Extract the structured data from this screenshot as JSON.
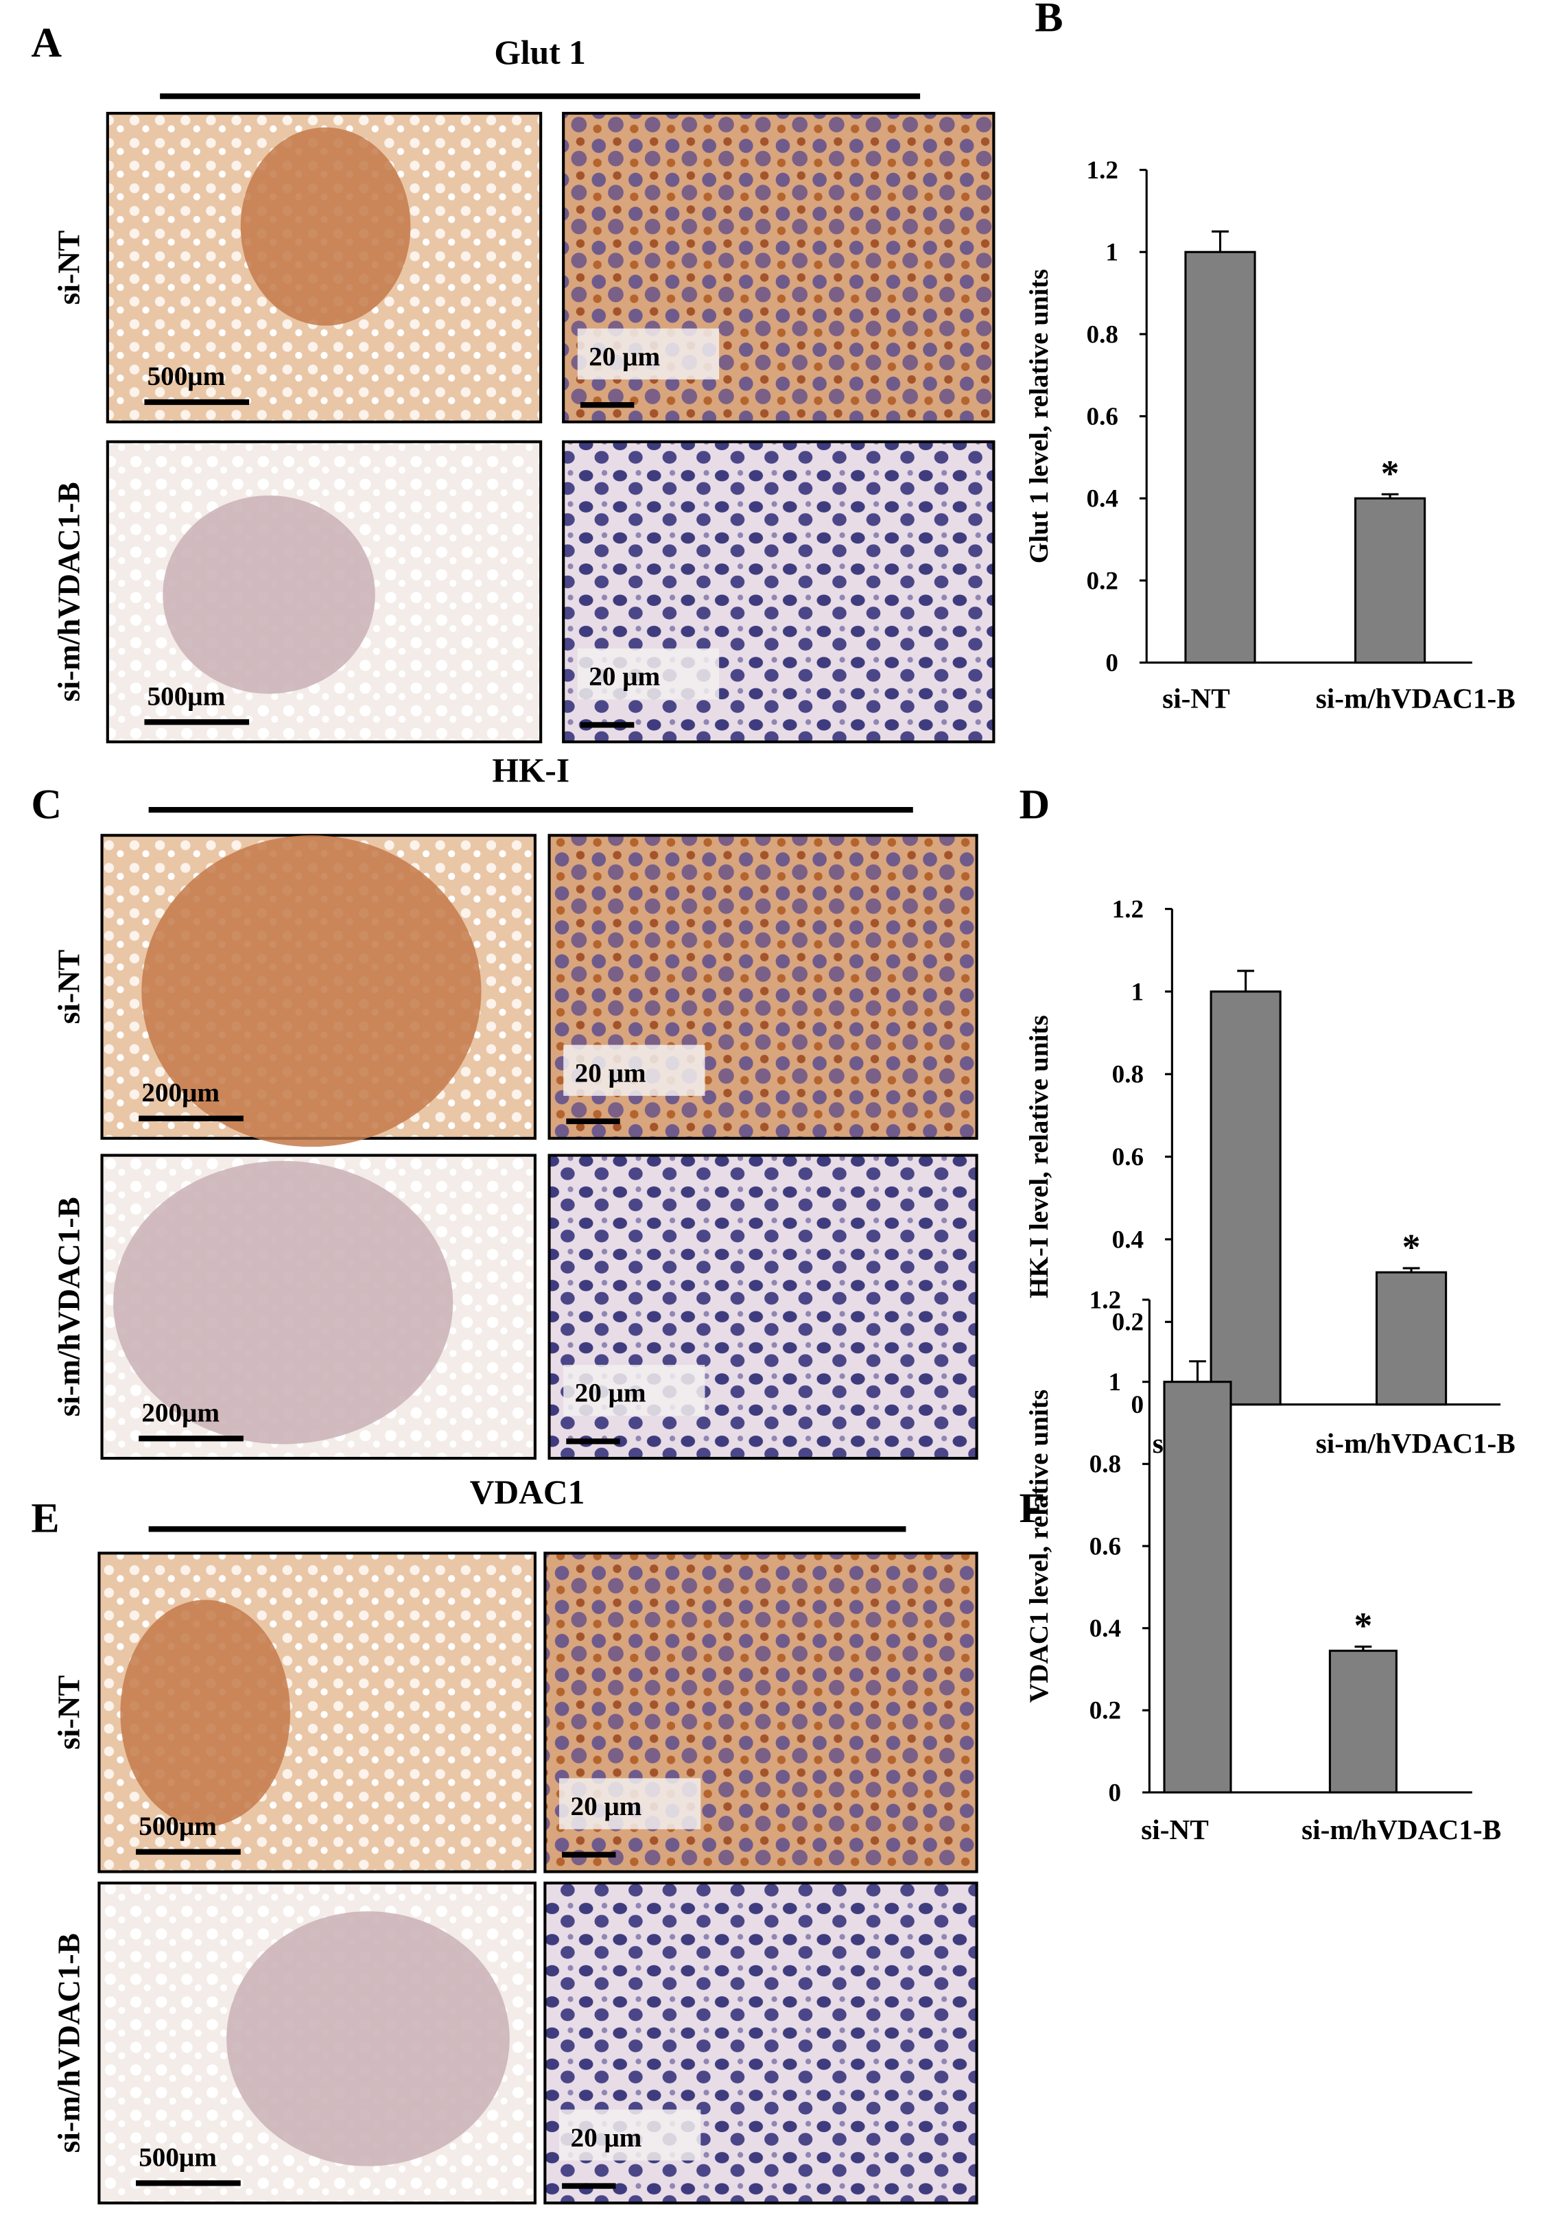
{
  "figure": {
    "blocks": [
      {
        "letter": "A",
        "title": "Glut 1",
        "rows": [
          "si-NT",
          "si-m/hVDAC1-B"
        ],
        "scale_bars": [
          [
            "500μm",
            "20 μm"
          ],
          [
            "500μm",
            "20 μm"
          ]
        ]
      },
      {
        "letter": "C",
        "title": "HK-I",
        "rows": [
          "si-NT",
          "si-m/hVDAC1-B"
        ],
        "scale_bars": [
          [
            "200μm",
            "20 μm"
          ],
          [
            "200μm",
            "20 μm"
          ]
        ]
      },
      {
        "letter": "E",
        "title": "VDAC1",
        "rows": [
          "si-NT",
          "si-m/hVDAC1-B"
        ],
        "scale_bars": [
          [
            "500μm",
            "20 μm"
          ],
          [
            "500μm",
            "20 μm"
          ]
        ]
      }
    ]
  },
  "chart_data": [
    {
      "type": "bar",
      "panel_label": "B",
      "ylabel": "Glut 1 level, relative units",
      "categories": [
        "si-NT",
        "si-m/hVDAC1-B"
      ],
      "values": [
        1,
        0.4
      ],
      "errors": [
        0.05,
        0.01
      ],
      "significance": [
        null,
        "*"
      ],
      "color": "#808080",
      "ylim": [
        0,
        1.2
      ],
      "yticks": [
        0,
        0.2,
        0.4,
        0.6,
        0.8,
        1,
        1.2
      ]
    },
    {
      "type": "bar",
      "panel_label": "D",
      "ylabel": "HK-I level, relative units",
      "categories": [
        "si-NT",
        "si-m/hVDAC1-B"
      ],
      "values": [
        1,
        0.32
      ],
      "errors": [
        0.05,
        0.01
      ],
      "significance": [
        null,
        "*"
      ],
      "color": "#808080",
      "ylim": [
        0,
        1.2
      ],
      "yticks": [
        0,
        0.2,
        0.4,
        0.6,
        0.8,
        1,
        1.2
      ]
    },
    {
      "type": "bar",
      "panel_label": "F",
      "ylabel": "VDAC1 level, relative units",
      "categories": [
        "si-NT",
        "si-m/hVDAC1-B"
      ],
      "values": [
        1,
        0.345
      ],
      "errors": [
        0.05,
        0.01
      ],
      "significance": [
        null,
        "*"
      ],
      "color": "#808080",
      "ylim": [
        0,
        1.2
      ],
      "yticks": [
        0,
        0.2,
        0.4,
        0.6,
        0.8,
        1,
        1.2
      ]
    }
  ]
}
